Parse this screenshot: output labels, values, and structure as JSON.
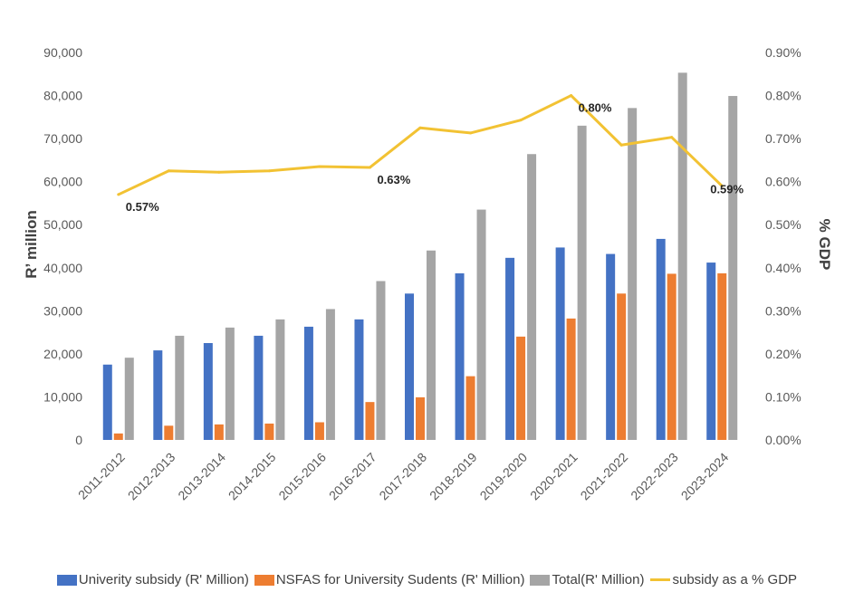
{
  "chart_data": {
    "type": "bar",
    "categories": [
      "2011-2012",
      "2012-2013",
      "2013-2014",
      "2014-2015",
      "2015-2016",
      "2016-2017",
      "2017-2018",
      "2018-2019",
      "2019-2020",
      "2020-2021",
      "2021-2022",
      "2022-2023",
      "2023-2024"
    ],
    "series": [
      {
        "name": "Univerity subsidy (R' Million)",
        "type": "bar",
        "axis": "left",
        "color": "#4472C4",
        "values": [
          17500,
          20800,
          22500,
          24200,
          26300,
          28000,
          34000,
          38700,
          42300,
          44700,
          43200,
          46700,
          41200
        ]
      },
      {
        "name": "NSFAS for University Sudents (R' Million)",
        "type": "bar",
        "axis": "left",
        "color": "#ED7D31",
        "values": [
          1500,
          3300,
          3600,
          3800,
          4100,
          8800,
          9900,
          14800,
          24000,
          28200,
          34000,
          38600,
          38700
        ]
      },
      {
        "name": "Total(R' Million)",
        "type": "bar",
        "axis": "left",
        "color": "#A5A5A5",
        "values": [
          19100,
          24200,
          26100,
          28000,
          30400,
          36900,
          44000,
          53500,
          66400,
          73000,
          77100,
          85300,
          79900
        ]
      },
      {
        "name": "subsidy as a % GDP",
        "type": "line",
        "axis": "right",
        "color": "#F2C233",
        "values": [
          0.57,
          0.625,
          0.622,
          0.625,
          0.635,
          0.633,
          0.725,
          0.713,
          0.743,
          0.8,
          0.685,
          0.703,
          0.59
        ]
      }
    ],
    "data_labels": [
      {
        "series": 3,
        "index": 0,
        "text": "0.57%"
      },
      {
        "series": 3,
        "index": 5,
        "text": "0.63%"
      },
      {
        "series": 3,
        "index": 9,
        "text": "0.80%"
      },
      {
        "series": 3,
        "index": 12,
        "text": "0.59%"
      }
    ],
    "ylabel": "R’ million",
    "y2label": "% GDP",
    "ylim": [
      0,
      90000
    ],
    "y2lim": [
      0,
      0.9
    ],
    "yticks": [
      "0",
      "10,000",
      "20,000",
      "30,000",
      "40,000",
      "50,000",
      "60,000",
      "70,000",
      "80,000",
      "90,000"
    ],
    "y2ticks": [
      "0.00%",
      "0.10%",
      "0.20%",
      "0.30%",
      "0.40%",
      "0.50%",
      "0.60%",
      "0.70%",
      "0.80%",
      "0.90%"
    ],
    "grid": false,
    "legend": "bottom"
  },
  "legend": {
    "items": [
      {
        "label": "Univerity subsidy (R' Million)",
        "kind": "box",
        "color": "#4472C4"
      },
      {
        "label": "NSFAS for University Sudents (R' Million)",
        "kind": "box",
        "color": "#ED7D31"
      },
      {
        "label": "Total(R' Million)",
        "kind": "box",
        "color": "#A5A5A5"
      },
      {
        "label": "subsidy as a % GDP",
        "kind": "line",
        "color": "#F2C233"
      }
    ]
  }
}
